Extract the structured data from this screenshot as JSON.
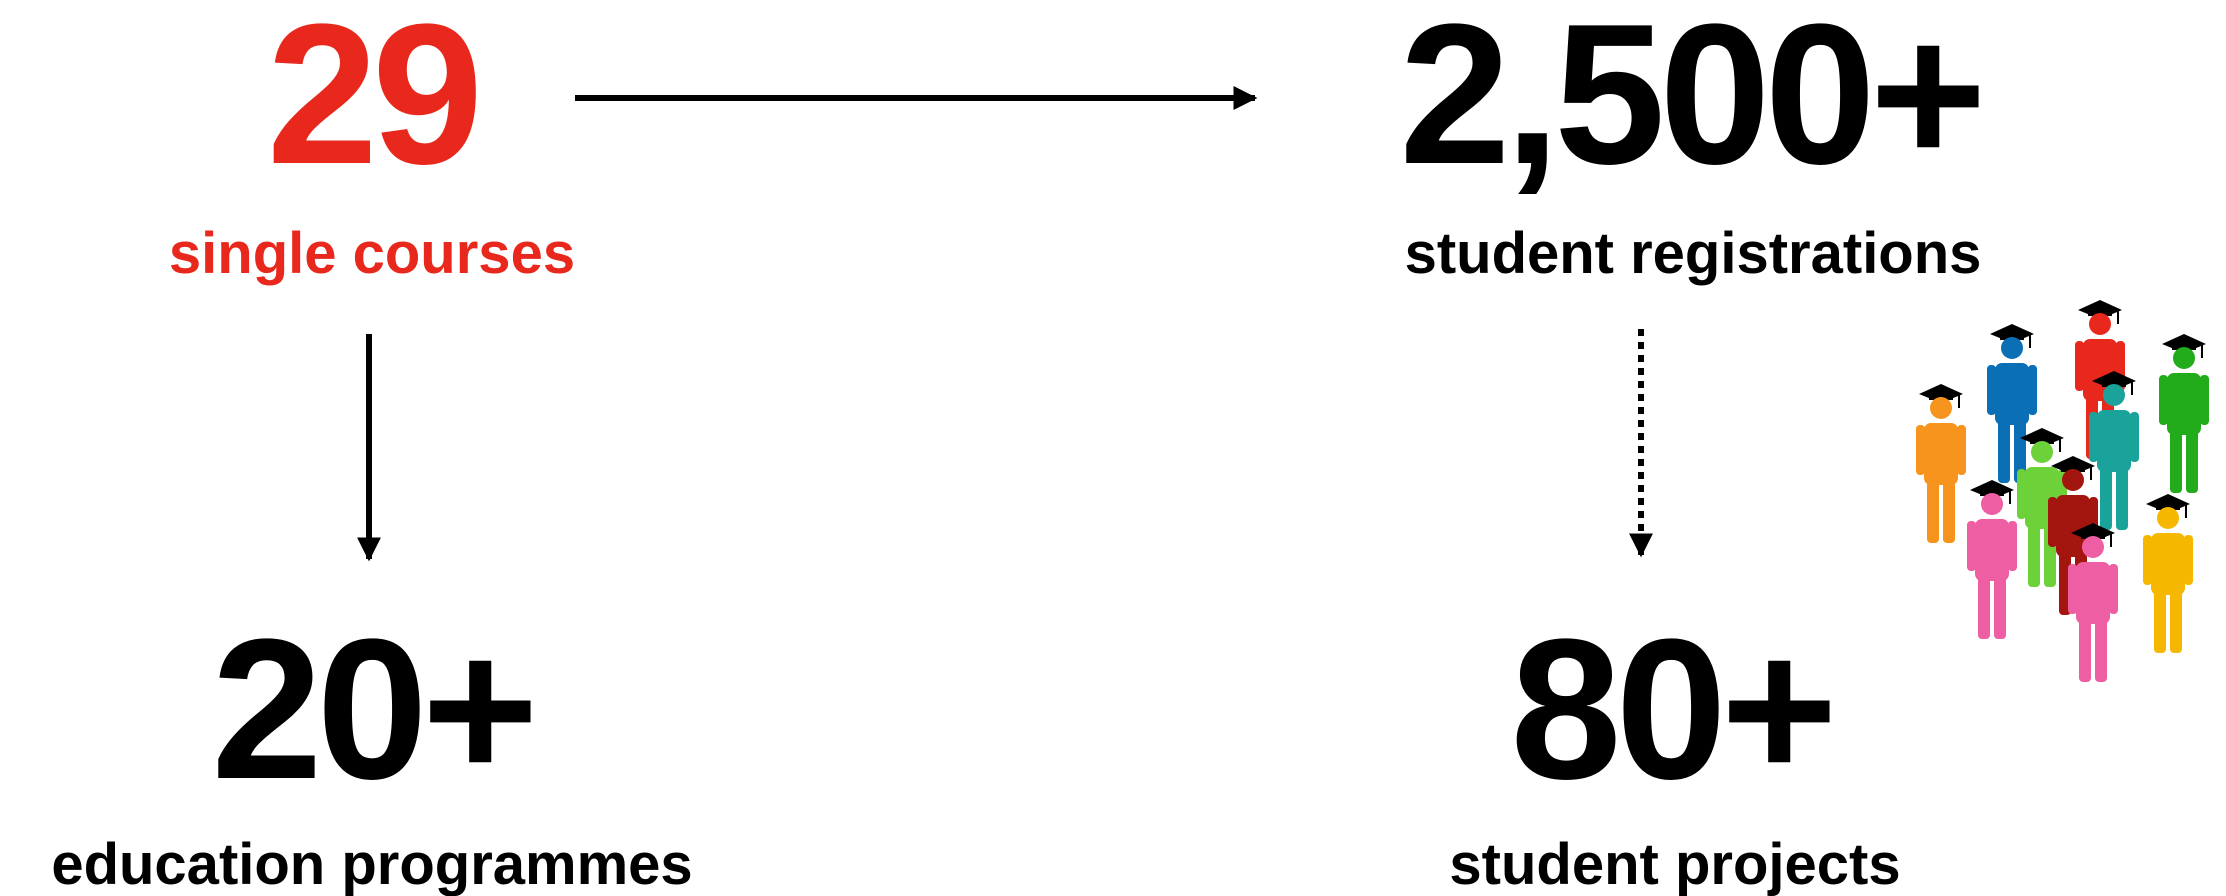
{
  "stats": [
    {
      "number": "29",
      "label": "single courses"
    },
    {
      "number": "2,500+",
      "label": "student registrations"
    },
    {
      "number": "20+",
      "label": "education programmes"
    },
    {
      "number": "80+",
      "label": "student projects"
    }
  ]
}
